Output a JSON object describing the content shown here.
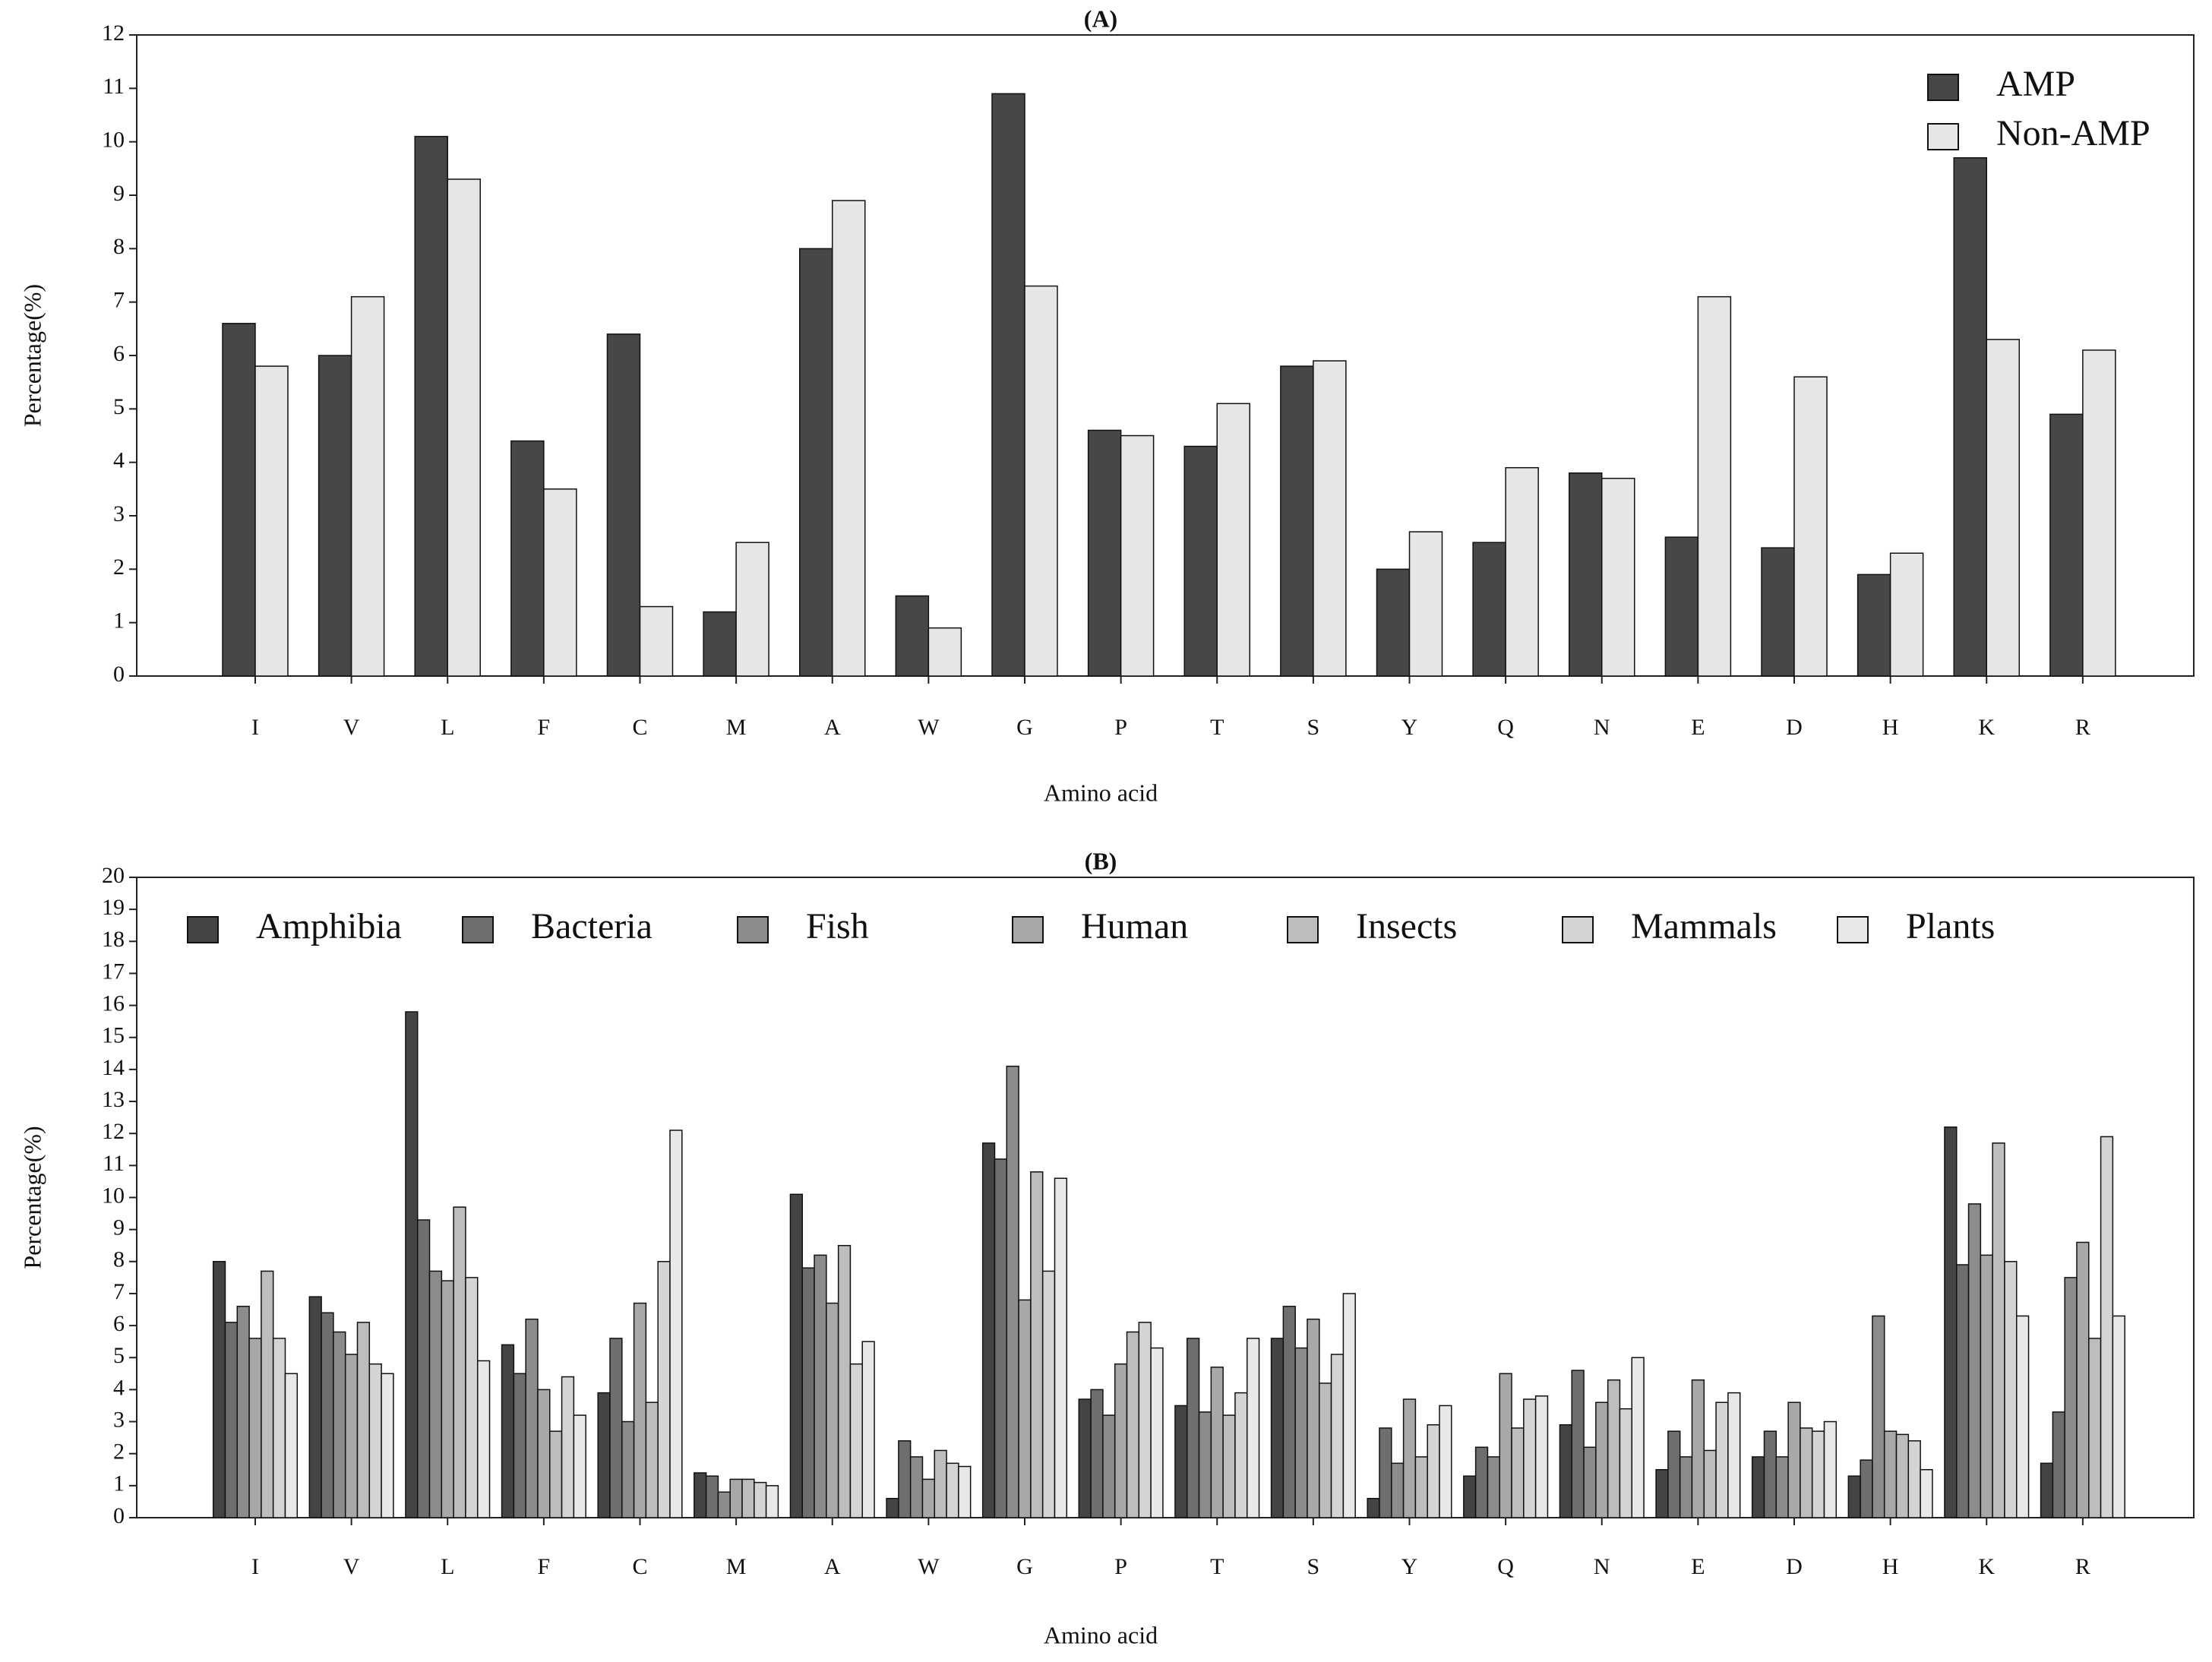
{
  "chart_data": [
    {
      "type": "bar",
      "title": "(A)",
      "xlabel": "Amino acid",
      "ylabel": "Percentage(%)",
      "categories": [
        "I",
        "V",
        "L",
        "F",
        "C",
        "M",
        "A",
        "W",
        "G",
        "P",
        "T",
        "S",
        "Y",
        "Q",
        "N",
        "E",
        "D",
        "H",
        "K",
        "R"
      ],
      "series": [
        {
          "name": "AMP",
          "color": "#474747",
          "values": [
            6.6,
            6.0,
            10.1,
            4.4,
            6.4,
            1.2,
            8.0,
            1.5,
            10.9,
            4.6,
            4.3,
            5.8,
            2.0,
            2.5,
            3.8,
            2.6,
            2.4,
            1.9,
            9.7,
            4.9
          ]
        },
        {
          "name": "Non-AMP",
          "color": "#e6e6e6",
          "values": [
            5.8,
            7.1,
            9.3,
            3.5,
            1.3,
            2.5,
            8.9,
            0.9,
            7.3,
            4.5,
            5.1,
            5.9,
            2.7,
            3.9,
            3.7,
            7.1,
            5.6,
            2.3,
            6.3,
            6.1
          ]
        }
      ],
      "ylim": [
        0,
        12
      ],
      "yticks": [
        0,
        1,
        2,
        3,
        4,
        5,
        6,
        7,
        8,
        9,
        10,
        11,
        12
      ],
      "legend": "upper right"
    },
    {
      "type": "bar",
      "title": "(B)",
      "xlabel": "Amino acid",
      "ylabel": "Percentage(%)",
      "categories": [
        "I",
        "V",
        "L",
        "F",
        "C",
        "M",
        "A",
        "W",
        "G",
        "P",
        "T",
        "S",
        "Y",
        "Q",
        "N",
        "E",
        "D",
        "H",
        "K",
        "R"
      ],
      "series": [
        {
          "name": "Amphibia",
          "color": "#444444",
          "values": [
            8.0,
            6.9,
            15.8,
            5.4,
            3.9,
            1.4,
            10.1,
            0.6,
            11.7,
            3.7,
            3.5,
            5.6,
            0.6,
            1.3,
            2.9,
            1.5,
            1.9,
            1.3,
            12.2,
            1.7
          ]
        },
        {
          "name": "Bacteria",
          "color": "#6e6e6e",
          "values": [
            6.1,
            6.4,
            9.3,
            4.5,
            5.6,
            1.3,
            7.8,
            2.4,
            11.2,
            4.0,
            5.6,
            6.6,
            2.8,
            2.2,
            4.6,
            2.7,
            2.7,
            1.8,
            7.9,
            3.3
          ]
        },
        {
          "name": "Fish",
          "color": "#8c8c8c",
          "values": [
            6.6,
            5.8,
            7.7,
            6.2,
            3.0,
            0.8,
            8.2,
            1.9,
            14.1,
            3.2,
            3.3,
            5.3,
            1.7,
            1.9,
            2.2,
            1.9,
            1.9,
            6.3,
            9.8,
            7.5
          ]
        },
        {
          "name": "Human",
          "color": "#a8a8a8",
          "values": [
            5.6,
            5.1,
            7.4,
            4.0,
            6.7,
            1.2,
            6.7,
            1.2,
            6.8,
            4.8,
            4.7,
            6.2,
            3.7,
            4.5,
            3.6,
            4.3,
            3.6,
            2.7,
            8.2,
            8.6
          ]
        },
        {
          "name": "Insects",
          "color": "#bdbdbd",
          "values": [
            7.7,
            6.1,
            9.7,
            2.7,
            3.6,
            1.2,
            8.5,
            2.1,
            10.8,
            5.8,
            3.2,
            4.2,
            1.9,
            2.8,
            4.3,
            2.1,
            2.8,
            2.6,
            11.7,
            5.6
          ]
        },
        {
          "name": "Mammals",
          "color": "#d4d4d4",
          "values": [
            5.6,
            4.8,
            7.5,
            4.4,
            8.0,
            1.1,
            4.8,
            1.7,
            7.7,
            6.1,
            3.9,
            5.1,
            2.9,
            3.7,
            3.4,
            3.6,
            2.7,
            2.4,
            8.0,
            11.9
          ]
        },
        {
          "name": "Plants",
          "color": "#e8e8e8",
          "values": [
            4.5,
            4.5,
            4.9,
            3.2,
            12.1,
            1.0,
            5.5,
            1.6,
            10.6,
            5.3,
            5.6,
            7.0,
            3.5,
            3.8,
            5.0,
            3.9,
            3.0,
            1.5,
            6.3,
            6.3
          ]
        }
      ],
      "ylim": [
        0,
        20
      ],
      "yticks": [
        0,
        1,
        2,
        3,
        4,
        5,
        6,
        7,
        8,
        9,
        10,
        11,
        12,
        13,
        14,
        15,
        16,
        17,
        18,
        19,
        20
      ],
      "legend": "upper center"
    }
  ]
}
